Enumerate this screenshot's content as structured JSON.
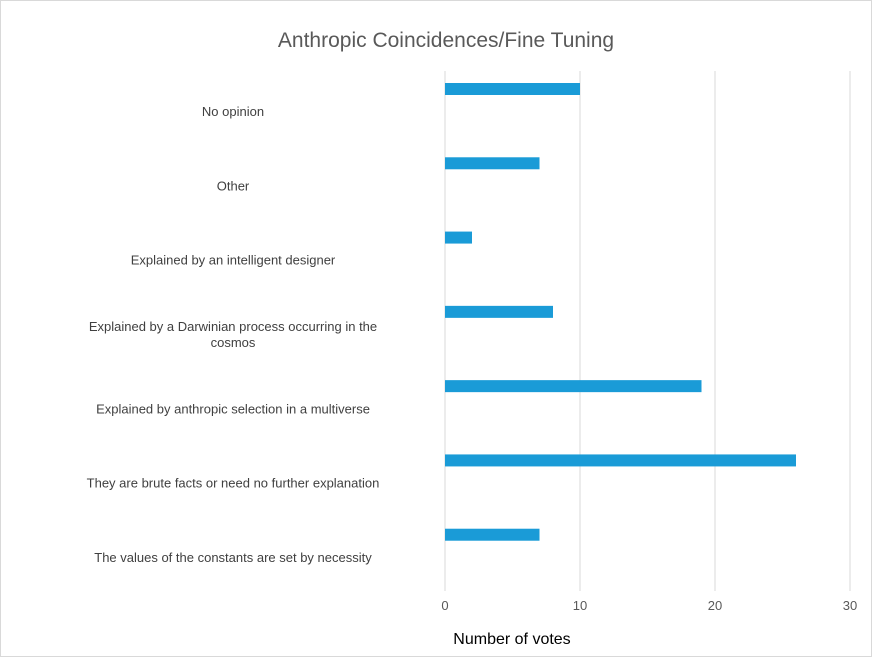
{
  "chart_data": {
    "type": "bar",
    "orientation": "horizontal",
    "title": "Anthropic Coincidences/Fine Tuning",
    "xlabel": "Number of votes",
    "ylabel": "",
    "categories": [
      "No opinion",
      "Other",
      "Explained by an intelligent designer",
      "Explained by a Darwinian process occurring in the cosmos",
      "Explained by anthropic selection in a multiverse",
      "They are brute facts or need no further explanation",
      "The values of the constants are set by necessity"
    ],
    "category_lines": [
      [
        "No opinion"
      ],
      [
        "Other"
      ],
      [
        "Explained by an intelligent designer"
      ],
      [
        "Explained by a Darwinian process occurring in the",
        "cosmos"
      ],
      [
        "Explained by anthropic selection in a multiverse"
      ],
      [
        "They are brute facts or need no further explanation"
      ],
      [
        "The values of the constants are set by necessity"
      ]
    ],
    "values": [
      10,
      7,
      2,
      8,
      19,
      26,
      7
    ],
    "xlim": [
      0,
      30
    ],
    "xticks": [
      0,
      10,
      20,
      30
    ],
    "grid": "vertical",
    "legend": "none",
    "colors": {
      "bar": "#1a9bd7",
      "grid": "#d9d9d9",
      "text": "#595959"
    }
  }
}
